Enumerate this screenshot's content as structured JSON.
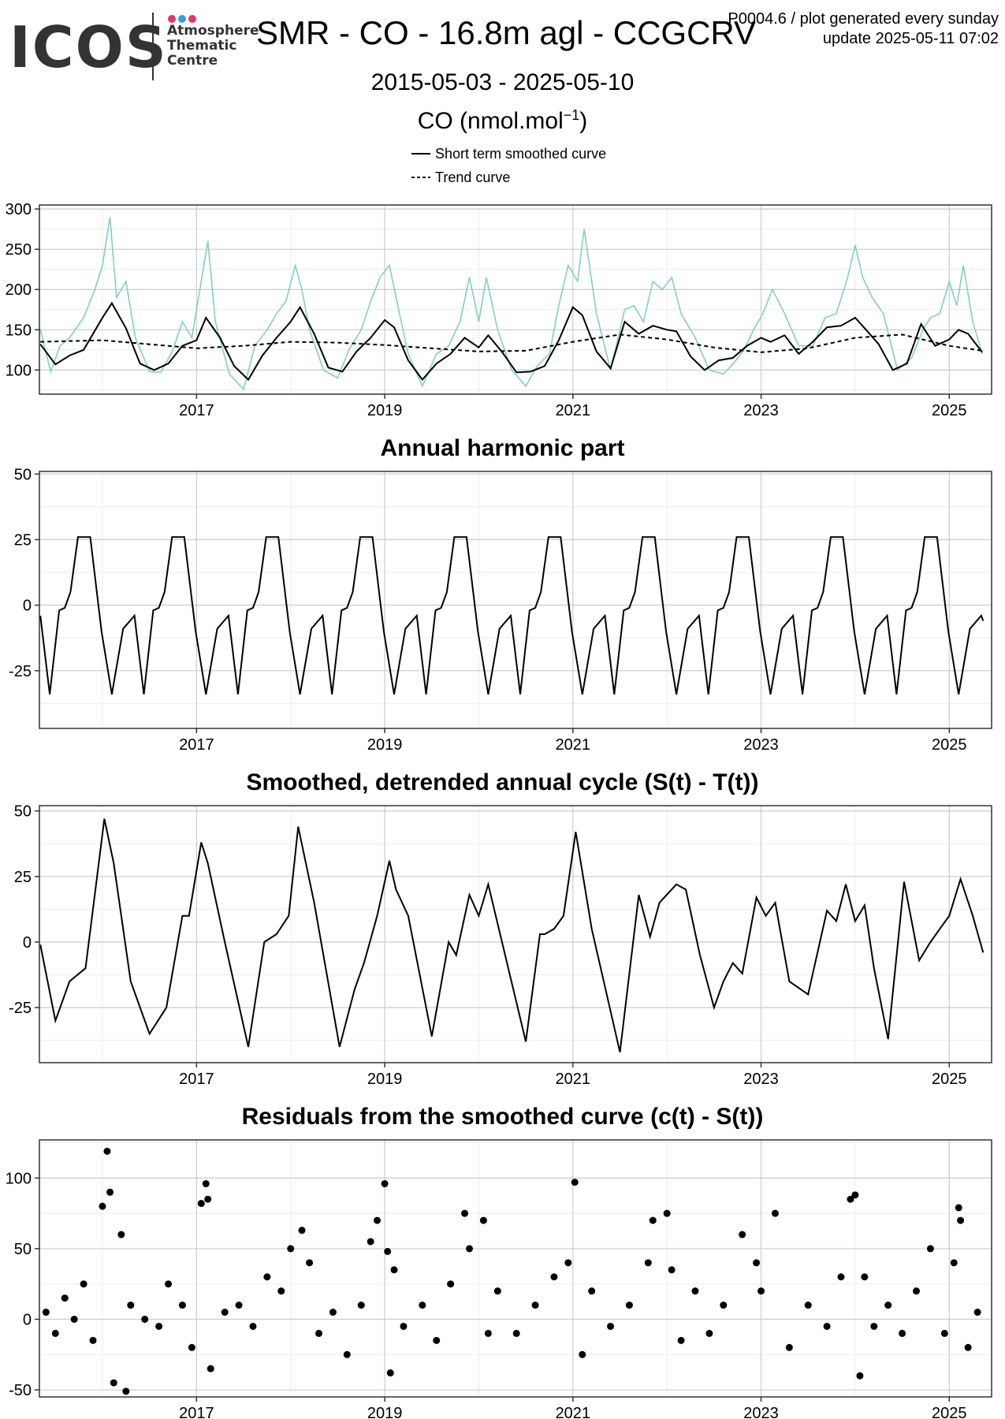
{
  "logo": {
    "text": "ICOS",
    "subtitle_lines": [
      "Atmosphere",
      "Thematic",
      "Centre"
    ],
    "dot_colors": [
      "#e5336f",
      "#2ea3dc",
      "#e5336f"
    ]
  },
  "header": {
    "title": "SMR - CO - 16.8m agl - CCGCRV",
    "date_range": "2015-05-03 - 2025-05-10",
    "unit_prefix": "CO (nmol.mol",
    "unit_sup": "−1",
    "unit_suffix": ")",
    "meta_line1": "P0004.6 / plot generated every sunday",
    "meta_line2": "update  2025-05-11 07:02"
  },
  "legend": {
    "short_term": "Short term smoothed curve",
    "trend": "Trend curve"
  },
  "colors": {
    "observations": "#7fd1c0",
    "curve": "#000000",
    "grid_major": "#cccccc",
    "grid_minor": "#ececec"
  },
  "chart_data": [
    {
      "id": "co-concentration",
      "type": "line",
      "title": "",
      "xlabel": "",
      "ylabel": "",
      "xlim": [
        2015.33,
        2025.45
      ],
      "ylim": [
        70,
        305
      ],
      "x_ticks": [
        2017,
        2019,
        2021,
        2023,
        2025
      ],
      "x_tick_labels": [
        "2017",
        "2019",
        "2021",
        "2023",
        "2025"
      ],
      "y_ticks": [
        100,
        150,
        200,
        250,
        300
      ],
      "y_tick_labels": [
        "100",
        "150",
        "200",
        "250",
        "300"
      ],
      "grid": true,
      "series": [
        {
          "name": "Short term smoothed curve",
          "style": "solid",
          "x": [
            2015.34,
            2015.5,
            2015.65,
            2015.8,
            2016.0,
            2016.1,
            2016.25,
            2016.4,
            2016.55,
            2016.7,
            2016.85,
            2017.0,
            2017.1,
            2017.25,
            2017.4,
            2017.55,
            2017.7,
            2017.85,
            2018.0,
            2018.1,
            2018.25,
            2018.4,
            2018.55,
            2018.7,
            2018.85,
            2019.0,
            2019.1,
            2019.25,
            2019.4,
            2019.55,
            2019.7,
            2019.85,
            2020.0,
            2020.1,
            2020.25,
            2020.4,
            2020.55,
            2020.7,
            2020.85,
            2021.0,
            2021.1,
            2021.25,
            2021.4,
            2021.55,
            2021.7,
            2021.85,
            2022.0,
            2022.1,
            2022.25,
            2022.4,
            2022.55,
            2022.7,
            2022.85,
            2023.0,
            2023.1,
            2023.25,
            2023.4,
            2023.55,
            2023.7,
            2023.85,
            2024.0,
            2024.1,
            2024.25,
            2024.4,
            2024.55,
            2024.7,
            2024.85,
            2025.0,
            2025.1,
            2025.2,
            2025.35
          ],
          "y": [
            132,
            107,
            118,
            125,
            165,
            183,
            152,
            108,
            100,
            108,
            130,
            137,
            165,
            140,
            105,
            88,
            118,
            140,
            160,
            178,
            145,
            103,
            98,
            123,
            140,
            162,
            153,
            112,
            88,
            108,
            120,
            140,
            128,
            143,
            122,
            97,
            98,
            105,
            137,
            178,
            168,
            123,
            102,
            160,
            145,
            155,
            150,
            148,
            117,
            100,
            112,
            115,
            130,
            140,
            135,
            143,
            120,
            135,
            153,
            155,
            165,
            152,
            132,
            100,
            108,
            157,
            130,
            138,
            150,
            145,
            122
          ]
        },
        {
          "name": "Trend curve",
          "style": "dashed",
          "x": [
            2015.34,
            2016.0,
            2016.5,
            2017.0,
            2017.5,
            2018.0,
            2018.5,
            2019.0,
            2019.5,
            2020.0,
            2020.5,
            2021.0,
            2021.5,
            2022.0,
            2022.5,
            2023.0,
            2023.5,
            2024.0,
            2024.5,
            2025.0,
            2025.35
          ],
          "y": [
            135,
            137,
            132,
            127,
            130,
            135,
            134,
            131,
            127,
            123,
            124,
            135,
            144,
            138,
            128,
            122,
            127,
            140,
            144,
            130,
            124
          ]
        },
        {
          "name": "",
          "style": "observations",
          "x": [
            2015.34,
            2015.45,
            2015.55,
            2015.65,
            2015.8,
            2015.92,
            2016.0,
            2016.08,
            2016.15,
            2016.25,
            2016.35,
            2016.5,
            2016.62,
            2016.75,
            2016.85,
            2016.95,
            2017.05,
            2017.12,
            2017.2,
            2017.35,
            2017.5,
            2017.62,
            2017.75,
            2017.85,
            2017.95,
            2018.05,
            2018.12,
            2018.2,
            2018.35,
            2018.5,
            2018.62,
            2018.75,
            2018.85,
            2018.95,
            2019.05,
            2019.12,
            2019.25,
            2019.4,
            2019.55,
            2019.68,
            2019.8,
            2019.9,
            2020.0,
            2020.08,
            2020.2,
            2020.35,
            2020.5,
            2020.62,
            2020.75,
            2020.85,
            2020.95,
            2021.05,
            2021.12,
            2021.25,
            2021.4,
            2021.55,
            2021.65,
            2021.75,
            2021.85,
            2021.95,
            2022.05,
            2022.15,
            2022.3,
            2022.45,
            2022.6,
            2022.72,
            2022.82,
            2022.92,
            2023.02,
            2023.12,
            2023.25,
            2023.4,
            2023.55,
            2023.68,
            2023.8,
            2023.92,
            2024.0,
            2024.08,
            2024.18,
            2024.3,
            2024.45,
            2024.6,
            2024.72,
            2024.8,
            2024.9,
            2025.0,
            2025.08,
            2025.15,
            2025.25,
            2025.35
          ],
          "y": [
            150,
            98,
            130,
            140,
            165,
            200,
            230,
            290,
            190,
            210,
            140,
            98,
            97,
            125,
            160,
            140,
            210,
            260,
            160,
            95,
            76,
            130,
            150,
            170,
            185,
            230,
            200,
            150,
            100,
            90,
            125,
            150,
            185,
            215,
            230,
            190,
            120,
            80,
            120,
            130,
            160,
            215,
            160,
            215,
            150,
            100,
            80,
            105,
            120,
            180,
            230,
            210,
            275,
            170,
            100,
            175,
            180,
            160,
            210,
            200,
            215,
            170,
            140,
            100,
            95,
            110,
            125,
            150,
            170,
            200,
            170,
            130,
            130,
            165,
            170,
            215,
            255,
            215,
            190,
            170,
            100,
            115,
            150,
            165,
            170,
            210,
            180,
            230,
            160,
            120
          ]
        }
      ]
    },
    {
      "id": "annual-harmonic",
      "type": "line",
      "title": "Annual harmonic part",
      "xlabel": "",
      "ylabel": "",
      "xlim": [
        2015.33,
        2025.45
      ],
      "ylim": [
        -47,
        51
      ],
      "x_ticks": [
        2017,
        2019,
        2021,
        2023,
        2025
      ],
      "x_tick_labels": [
        "2017",
        "2019",
        "2021",
        "2023",
        "2025"
      ],
      "y_ticks": [
        -25,
        0,
        25,
        50
      ],
      "y_tick_labels": [
        "-25",
        "0",
        "25",
        "50"
      ],
      "grid": true,
      "period": 1.0,
      "phase_origin": 2015.34,
      "cycle_phase": [
        0.0,
        0.1,
        0.2,
        0.26,
        0.32,
        0.4,
        0.53,
        0.65,
        0.76,
        0.88,
        1.0
      ],
      "cycle_value": [
        -4,
        -34,
        -2,
        -1,
        5,
        26,
        26,
        -10,
        -34,
        -9,
        -4
      ],
      "x_end": 2025.36,
      "end_value": -6
    },
    {
      "id": "detrended-cycle",
      "type": "line",
      "title": "Smoothed, detrended annual cycle (S(t) - T(t))",
      "xlabel": "",
      "ylabel": "",
      "xlim": [
        2015.33,
        2025.45
      ],
      "ylim": [
        -46,
        52
      ],
      "x_ticks": [
        2017,
        2019,
        2021,
        2023,
        2025
      ],
      "x_tick_labels": [
        "2017",
        "2019",
        "2021",
        "2023",
        "2025"
      ],
      "y_ticks": [
        -25,
        0,
        25,
        50
      ],
      "y_tick_labels": [
        "-25",
        "0",
        "25",
        "50"
      ],
      "grid": true,
      "x": [
        2015.34,
        2015.5,
        2015.65,
        2015.82,
        2016.02,
        2016.12,
        2016.3,
        2016.5,
        2016.68,
        2016.85,
        2016.92,
        2017.05,
        2017.12,
        2017.3,
        2017.55,
        2017.72,
        2017.85,
        2017.98,
        2018.08,
        2018.25,
        2018.52,
        2018.68,
        2018.78,
        2018.92,
        2019.05,
        2019.12,
        2019.25,
        2019.5,
        2019.68,
        2019.76,
        2019.9,
        2020.0,
        2020.1,
        2020.5,
        2020.65,
        2020.7,
        2020.8,
        2020.9,
        2021.03,
        2021.2,
        2021.5,
        2021.7,
        2021.82,
        2021.92,
        2022.1,
        2022.2,
        2022.35,
        2022.5,
        2022.6,
        2022.7,
        2022.8,
        2022.95,
        2023.05,
        2023.15,
        2023.3,
        2023.5,
        2023.7,
        2023.8,
        2023.9,
        2024.0,
        2024.1,
        2024.2,
        2024.35,
        2024.52,
        2024.68,
        2024.8,
        2024.9,
        2025.0,
        2025.12,
        2025.25,
        2025.36
      ],
      "y": [
        -1,
        -30,
        -15,
        -10,
        47,
        30,
        -15,
        -35,
        -25,
        10,
        10,
        38,
        30,
        0,
        -40,
        0,
        3,
        10,
        44,
        15,
        -40,
        -18,
        -8,
        10,
        31,
        20,
        10,
        -36,
        0,
        -5,
        18,
        10,
        22,
        -38,
        3,
        3,
        5,
        10,
        42,
        5,
        -42,
        18,
        2,
        15,
        22,
        20,
        -5,
        -25,
        -15,
        -8,
        -12,
        17,
        10,
        15,
        -15,
        -20,
        12,
        8,
        22,
        8,
        14,
        -10,
        -37,
        23,
        -7,
        0,
        5,
        10,
        24,
        10,
        -4
      ]
    },
    {
      "id": "residuals",
      "type": "scatter",
      "title": "Residuals from the smoothed curve (c(t) - S(t))",
      "xlabel": "",
      "ylabel": "",
      "xlim": [
        2015.33,
        2025.45
      ],
      "ylim": [
        -55,
        127
      ],
      "x_ticks": [
        2017,
        2019,
        2021,
        2023,
        2025
      ],
      "x_tick_labels": [
        "2017",
        "2019",
        "2021",
        "2023",
        "2025"
      ],
      "y_ticks": [
        -50,
        0,
        50,
        100
      ],
      "y_tick_labels": [
        "-50",
        "0",
        "50",
        "100"
      ],
      "grid": true,
      "x": [
        2015.4,
        2015.5,
        2015.6,
        2015.7,
        2015.8,
        2015.9,
        2016.0,
        2016.05,
        2016.08,
        2016.12,
        2016.2,
        2016.25,
        2016.3,
        2016.45,
        2016.6,
        2016.7,
        2016.85,
        2016.95,
        2017.05,
        2017.1,
        2017.12,
        2017.15,
        2017.3,
        2017.45,
        2017.6,
        2017.75,
        2017.9,
        2018.0,
        2018.12,
        2018.2,
        2018.3,
        2018.45,
        2018.6,
        2018.75,
        2018.85,
        2018.92,
        2019.0,
        2019.03,
        2019.06,
        2019.1,
        2019.2,
        2019.4,
        2019.55,
        2019.7,
        2019.85,
        2019.9,
        2020.05,
        2020.1,
        2020.2,
        2020.4,
        2020.6,
        2020.8,
        2020.95,
        2021.02,
        2021.1,
        2021.2,
        2021.4,
        2021.6,
        2021.8,
        2021.85,
        2022.0,
        2022.05,
        2022.15,
        2022.3,
        2022.45,
        2022.6,
        2022.8,
        2022.95,
        2023.0,
        2023.15,
        2023.3,
        2023.5,
        2023.7,
        2023.85,
        2023.95,
        2024.0,
        2024.05,
        2024.1,
        2024.2,
        2024.35,
        2024.5,
        2024.65,
        2024.8,
        2024.95,
        2025.05,
        2025.1,
        2025.12,
        2025.2,
        2025.3
      ],
      "y": [
        5,
        -10,
        15,
        0,
        25,
        -15,
        80,
        119,
        90,
        -45,
        60,
        -51,
        10,
        0,
        -5,
        25,
        10,
        -20,
        82,
        96,
        85,
        -35,
        5,
        10,
        -5,
        30,
        20,
        50,
        63,
        40,
        -10,
        5,
        -25,
        10,
        55,
        70,
        96,
        48,
        -38,
        35,
        -5,
        10,
        -15,
        25,
        75,
        50,
        70,
        -10,
        20,
        -10,
        10,
        30,
        40,
        97,
        -25,
        20,
        -5,
        10,
        40,
        70,
        75,
        35,
        -15,
        20,
        -10,
        10,
        60,
        40,
        20,
        75,
        -20,
        10,
        -5,
        30,
        85,
        88,
        -40,
        30,
        -5,
        10,
        -10,
        20,
        50,
        -10,
        40,
        79,
        70,
        -20,
        5
      ]
    }
  ]
}
